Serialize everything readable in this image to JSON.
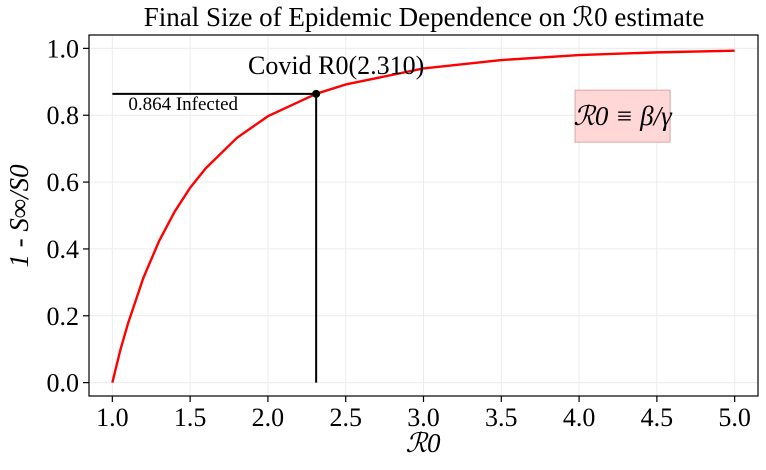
{
  "chart_data": {
    "type": "line",
    "title": "Final Size of Epidemic Dependence on ℛ0 estimate",
    "xlabel": "ℛ0",
    "ylabel": "1 - S∞/S0",
    "xlim": [
      0.85,
      5.15
    ],
    "ylim": [
      -0.04,
      1.04
    ],
    "x_ticks": [
      "1.0",
      "1.5",
      "2.0",
      "2.5",
      "3.0",
      "3.5",
      "4.0",
      "4.5",
      "5.0"
    ],
    "y_ticks": [
      "0.0",
      "0.2",
      "0.4",
      "0.6",
      "0.8",
      "1.0"
    ],
    "grid": true,
    "series": [
      {
        "color": "#ff0000",
        "x": [
          1.0,
          1.05,
          1.1,
          1.2,
          1.3,
          1.4,
          1.5,
          1.6,
          1.8,
          2.0,
          2.31,
          2.5,
          3.0,
          3.5,
          4.0,
          4.5,
          5.0
        ],
        "y": [
          0.0,
          0.095,
          0.176,
          0.314,
          0.423,
          0.511,
          0.583,
          0.641,
          0.732,
          0.797,
          0.864,
          0.892,
          0.94,
          0.965,
          0.98,
          0.988,
          0.993
        ]
      }
    ],
    "highlight_point": {
      "x": 2.31,
      "y": 0.864,
      "color": "#000000"
    },
    "annotations": {
      "covid_label": "Covid R0(2.310)",
      "infected_label": "0.864 Infected",
      "formula": "ℛ0 ≡ β/γ",
      "formula_box_color": "#ffd7d7"
    }
  }
}
